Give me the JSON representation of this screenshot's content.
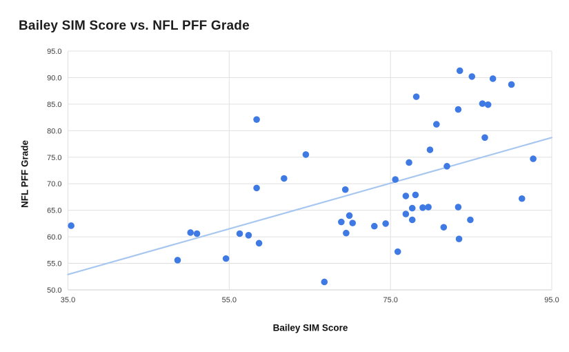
{
  "chart_data": {
    "type": "scatter",
    "title": "Bailey SIM Score vs. NFL PFF Grade",
    "xlabel": "Bailey SIM Score",
    "ylabel": "NFL PFF Grade",
    "xlim": [
      35,
      95
    ],
    "ylim": [
      50,
      95
    ],
    "grid": true,
    "legend_position": "none",
    "x_ticks": [
      {
        "value": 35,
        "label": "35.0"
      },
      {
        "value": 55,
        "label": "55.0"
      },
      {
        "value": 75,
        "label": "75.0"
      },
      {
        "value": 95,
        "label": "95.0"
      }
    ],
    "y_ticks": [
      {
        "value": 50,
        "label": "50.0"
      },
      {
        "value": 55,
        "label": "55.0"
      },
      {
        "value": 60,
        "label": "60.0"
      },
      {
        "value": 65,
        "label": "65.0"
      },
      {
        "value": 70,
        "label": "70.0"
      },
      {
        "value": 75,
        "label": "75.0"
      },
      {
        "value": 80,
        "label": "80.0"
      },
      {
        "value": 85,
        "label": "85.0"
      },
      {
        "value": 90,
        "label": "90.0"
      },
      {
        "value": 95,
        "label": "95.0"
      }
    ],
    "points": [
      [
        35.4,
        62.1
      ],
      [
        48.6,
        55.6
      ],
      [
        50.2,
        60.8
      ],
      [
        51.0,
        60.6
      ],
      [
        54.6,
        55.9
      ],
      [
        56.3,
        60.6
      ],
      [
        57.4,
        60.3
      ],
      [
        58.4,
        69.2
      ],
      [
        58.4,
        82.1
      ],
      [
        58.7,
        58.8
      ],
      [
        61.8,
        71.0
      ],
      [
        64.5,
        75.5
      ],
      [
        66.8,
        51.5
      ],
      [
        68.9,
        62.8
      ],
      [
        69.4,
        68.9
      ],
      [
        69.5,
        60.7
      ],
      [
        69.9,
        64.0
      ],
      [
        70.3,
        62.6
      ],
      [
        73.0,
        62.0
      ],
      [
        74.4,
        62.5
      ],
      [
        75.6,
        70.8
      ],
      [
        75.9,
        57.2
      ],
      [
        76.9,
        67.7
      ],
      [
        76.9,
        64.3
      ],
      [
        77.3,
        74.0
      ],
      [
        77.7,
        65.4
      ],
      [
        77.7,
        63.2
      ],
      [
        78.1,
        67.9
      ],
      [
        78.2,
        86.4
      ],
      [
        79.0,
        65.5
      ],
      [
        79.7,
        65.6
      ],
      [
        79.9,
        76.4
      ],
      [
        80.7,
        81.2
      ],
      [
        81.6,
        61.8
      ],
      [
        82.0,
        73.3
      ],
      [
        83.4,
        84.0
      ],
      [
        83.4,
        65.6
      ],
      [
        83.5,
        59.6
      ],
      [
        83.6,
        91.3
      ],
      [
        84.9,
        63.2
      ],
      [
        85.1,
        90.2
      ],
      [
        86.4,
        85.1
      ],
      [
        86.7,
        78.7
      ],
      [
        87.1,
        84.9
      ],
      [
        87.7,
        89.8
      ],
      [
        90.0,
        88.7
      ],
      [
        91.3,
        67.2
      ],
      [
        92.7,
        74.7
      ]
    ],
    "trendline": {
      "x1": 35,
      "y1": 52.9,
      "x2": 95,
      "y2": 78.7
    },
    "colors": {
      "point": "#3f7ae4",
      "trendline": "#a8c7f0",
      "gridline": "#e0e0e0",
      "axis_line": "#cccccc",
      "tick_label": "#3c3c3c",
      "title": "#1d1d1d"
    }
  }
}
